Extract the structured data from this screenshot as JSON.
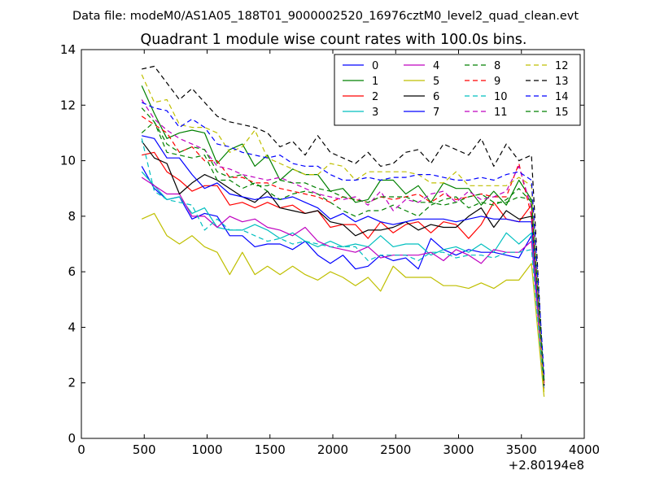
{
  "header": "Data file: modeM0/AS1A05_188T01_9000002520_16976cztM0_level2_quad_clean.evt",
  "chart_data": {
    "type": "line",
    "title": "Quadrant 1 module wise count rates with 100.0s bins.",
    "xlabel": "",
    "ylabel": "",
    "x_offset_label": "+2.80194e8",
    "xlim": [
      0,
      4000
    ],
    "ylim": [
      0,
      14
    ],
    "x_ticks": [
      0,
      500,
      1000,
      1500,
      2000,
      2500,
      3000,
      3500,
      4000
    ],
    "y_ticks": [
      0,
      2,
      4,
      6,
      8,
      10,
      12,
      14
    ],
    "grid": false,
    "legend_position": "top-right",
    "x": [
      480,
      580,
      680,
      780,
      880,
      980,
      1080,
      1180,
      1280,
      1380,
      1480,
      1580,
      1680,
      1780,
      1880,
      1980,
      2080,
      2180,
      2280,
      2380,
      2480,
      2580,
      2680,
      2780,
      2880,
      2980,
      3080,
      3180,
      3280,
      3380,
      3480,
      3580,
      3680
    ],
    "series": [
      {
        "name": "0",
        "color": "#0000ff",
        "dash": "solid",
        "values": [
          9.8,
          9.0,
          8.6,
          8.7,
          7.9,
          8.1,
          8.0,
          7.3,
          7.3,
          6.9,
          7.0,
          7.0,
          6.8,
          7.1,
          6.6,
          6.3,
          6.6,
          6.1,
          6.2,
          6.6,
          6.4,
          6.5,
          6.1,
          7.2,
          6.8,
          6.6,
          6.8,
          6.7,
          6.7,
          6.6,
          6.5,
          7.3,
          1.9
        ]
      },
      {
        "name": "1",
        "color": "#008000",
        "dash": "solid",
        "values": [
          12.7,
          11.7,
          10.8,
          11.0,
          11.1,
          11.0,
          9.9,
          10.4,
          10.6,
          9.8,
          10.2,
          9.3,
          9.7,
          9.5,
          9.5,
          8.9,
          9.0,
          8.5,
          8.6,
          9.3,
          9.3,
          8.8,
          9.1,
          8.5,
          9.2,
          9.0,
          9.0,
          8.4,
          8.9,
          8.4,
          9.3,
          8.6,
          2.0
        ]
      },
      {
        "name": "2",
        "color": "#ff0000",
        "dash": "solid",
        "values": [
          10.2,
          10.3,
          9.6,
          9.3,
          8.9,
          9.1,
          9.1,
          8.4,
          8.5,
          8.3,
          8.5,
          8.3,
          8.4,
          8.1,
          8.2,
          7.6,
          7.7,
          7.7,
          7.2,
          7.8,
          7.4,
          7.7,
          7.8,
          7.4,
          7.8,
          7.7,
          7.2,
          7.7,
          8.5,
          7.9,
          7.8,
          8.4,
          2.0
        ]
      },
      {
        "name": "3",
        "color": "#00bfbf",
        "dash": "solid",
        "values": [
          9.6,
          9.1,
          8.6,
          8.7,
          8.1,
          8.3,
          7.6,
          7.5,
          7.5,
          7.7,
          7.5,
          7.2,
          7.4,
          7.1,
          6.9,
          7.1,
          6.9,
          7.0,
          6.9,
          7.3,
          6.9,
          7.0,
          7.0,
          6.6,
          6.8,
          6.9,
          6.7,
          7.0,
          6.7,
          7.4,
          7.0,
          7.4,
          1.8
        ]
      },
      {
        "name": "4",
        "color": "#bf00bf",
        "dash": "solid",
        "values": [
          9.4,
          9.1,
          8.8,
          8.8,
          8.0,
          8.0,
          7.6,
          8.0,
          7.8,
          7.9,
          7.6,
          7.5,
          7.3,
          7.6,
          7.1,
          6.9,
          6.8,
          6.7,
          6.9,
          6.5,
          6.6,
          6.6,
          6.6,
          6.7,
          6.4,
          6.8,
          6.6,
          6.3,
          6.8,
          6.7,
          6.7,
          7.1,
          1.8
        ]
      },
      {
        "name": "5",
        "color": "#bfbf00",
        "dash": "solid",
        "values": [
          7.9,
          8.1,
          7.3,
          7.0,
          7.3,
          6.9,
          6.7,
          5.9,
          6.7,
          5.9,
          6.2,
          5.9,
          6.2,
          5.9,
          5.7,
          6.0,
          5.8,
          5.5,
          5.8,
          5.3,
          6.2,
          5.8,
          5.8,
          5.8,
          5.5,
          5.5,
          5.4,
          5.6,
          5.4,
          5.7,
          5.7,
          6.3,
          1.5
        ]
      },
      {
        "name": "6",
        "color": "#000000",
        "dash": "solid",
        "values": [
          10.7,
          10.1,
          9.9,
          8.8,
          9.2,
          9.5,
          9.3,
          9.0,
          8.7,
          8.5,
          8.9,
          8.3,
          8.2,
          8.1,
          8.2,
          7.8,
          7.7,
          7.3,
          7.5,
          7.5,
          7.6,
          7.8,
          7.5,
          7.7,
          7.6,
          7.6,
          8.0,
          8.3,
          7.6,
          8.2,
          7.9,
          8.0,
          2.1
        ]
      },
      {
        "name": "7",
        "color": "#0000ff",
        "dash": "solid",
        "values": [
          10.9,
          10.8,
          10.1,
          10.1,
          9.5,
          9.0,
          9.2,
          8.8,
          8.7,
          8.6,
          8.7,
          8.6,
          8.7,
          8.5,
          8.3,
          7.9,
          8.1,
          7.8,
          8.0,
          7.8,
          7.7,
          7.8,
          7.9,
          7.9,
          7.9,
          7.8,
          7.9,
          8.0,
          7.9,
          7.9,
          7.8,
          7.8,
          2.1
        ]
      },
      {
        "name": "8",
        "color": "#008000",
        "dash": "dashed",
        "values": [
          11.9,
          11.4,
          10.3,
          10.2,
          10.1,
          10.2,
          9.3,
          9.3,
          9.0,
          9.2,
          8.9,
          8.6,
          8.8,
          8.9,
          8.8,
          8.5,
          8.2,
          8.0,
          8.2,
          8.2,
          8.4,
          8.2,
          8.0,
          8.4,
          8.6,
          8.7,
          8.3,
          8.5,
          8.4,
          8.6,
          9.0,
          8.5,
          2.0
        ]
      },
      {
        "name": "9",
        "color": "#ff0000",
        "dash": "dashed",
        "values": [
          11.6,
          11.3,
          11.0,
          10.3,
          10.5,
          10.0,
          10.0,
          9.4,
          9.4,
          9.2,
          9.2,
          9.0,
          8.9,
          8.8,
          8.7,
          8.5,
          8.7,
          8.6,
          8.5,
          8.7,
          8.6,
          8.7,
          8.8,
          8.5,
          8.8,
          8.6,
          8.7,
          8.8,
          8.7,
          8.7,
          9.9,
          8.0,
          2.0
        ]
      },
      {
        "name": "10",
        "color": "#00bfbf",
        "dash": "dashed",
        "values": [
          10.8,
          8.9,
          8.6,
          8.5,
          8.4,
          7.5,
          7.9,
          7.5,
          7.5,
          7.3,
          7.1,
          7.2,
          7.0,
          7.1,
          7.0,
          6.9,
          6.9,
          6.9,
          6.4,
          6.6,
          6.6,
          6.6,
          6.4,
          6.7,
          6.7,
          6.5,
          6.6,
          6.6,
          6.5,
          6.7,
          6.7,
          6.8,
          1.8
        ]
      },
      {
        "name": "11",
        "color": "#bf00bf",
        "dash": "dashed",
        "values": [
          12.2,
          11.5,
          11.1,
          10.8,
          10.6,
          10.4,
          9.8,
          9.7,
          9.5,
          9.4,
          9.3,
          9.4,
          9.2,
          9.0,
          8.8,
          8.7,
          8.6,
          8.7,
          8.4,
          8.9,
          8.2,
          8.6,
          8.5,
          8.8,
          8.9,
          8.5,
          8.9,
          8.6,
          8.7,
          8.9,
          9.8,
          8.3,
          1.9
        ]
      },
      {
        "name": "12",
        "color": "#bfbf00",
        "dash": "dashed",
        "values": [
          13.1,
          12.1,
          12.2,
          11.3,
          11.2,
          11.2,
          11.0,
          10.3,
          10.5,
          11.1,
          10.1,
          9.9,
          9.7,
          9.5,
          9.5,
          9.9,
          9.8,
          9.3,
          9.6,
          9.6,
          9.6,
          9.6,
          9.5,
          9.2,
          9.2,
          9.6,
          9.1,
          9.1,
          9.1,
          9.1,
          9.4,
          9.1,
          1.6
        ]
      },
      {
        "name": "13",
        "color": "#000000",
        "dash": "dashed",
        "values": [
          13.3,
          13.4,
          12.8,
          12.2,
          12.6,
          12.1,
          11.6,
          11.4,
          11.3,
          11.2,
          11.0,
          10.5,
          10.7,
          10.2,
          10.9,
          10.3,
          10.1,
          9.9,
          10.3,
          9.8,
          9.9,
          10.3,
          10.4,
          9.9,
          10.6,
          10.4,
          10.2,
          10.8,
          9.8,
          10.6,
          10.0,
          10.2,
          1.9
        ]
      },
      {
        "name": "14",
        "color": "#0000ff",
        "dash": "dashed",
        "values": [
          12.1,
          11.9,
          11.8,
          11.2,
          11.5,
          11.2,
          10.6,
          10.5,
          10.3,
          10.2,
          10.1,
          10.2,
          9.9,
          9.8,
          9.8,
          9.5,
          9.3,
          9.3,
          9.4,
          9.3,
          9.4,
          9.4,
          9.5,
          9.5,
          9.4,
          9.3,
          9.3,
          9.4,
          9.3,
          9.5,
          9.6,
          9.3,
          2.3
        ]
      },
      {
        "name": "15",
        "color": "#008000",
        "dash": "dashed",
        "values": [
          11.0,
          11.4,
          10.6,
          10.3,
          10.5,
          10.4,
          9.6,
          9.4,
          9.5,
          9.1,
          9.1,
          9.3,
          9.2,
          9.2,
          9.0,
          8.9,
          8.7,
          8.6,
          8.5,
          8.7,
          8.7,
          8.7,
          8.5,
          8.5,
          8.4,
          8.5,
          8.7,
          8.8,
          8.5,
          8.5,
          8.7,
          8.6,
          2.0
        ]
      }
    ]
  }
}
